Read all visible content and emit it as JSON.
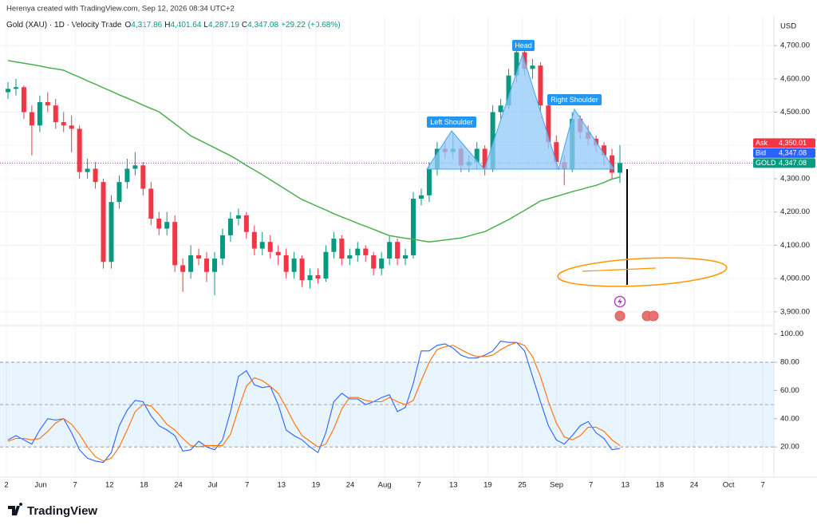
{
  "header": {
    "credit": "Herenya created with TradingView.com, Sep 12, 2026 08:34 UTC+2",
    "symbol": "Gold (XAU) · 1D · Velocity Trade",
    "ohlc": [
      {
        "key": "O",
        "value": "4,317.86"
      },
      {
        "key": "H",
        "value": "4,401.64"
      },
      {
        "key": "L",
        "value": "4,287.19"
      },
      {
        "key": "C",
        "value": "4,347.08"
      }
    ],
    "change": "+29.22 (+0.68%)",
    "currency": "USD"
  },
  "footer": {
    "brand": "TradingView"
  },
  "chart_data": [
    {
      "type": "candlestick",
      "up_color": "#089981",
      "down_color": "#f23645",
      "ylim": [
        3866,
        4789
      ],
      "yticks": [
        {
          "value": 3900,
          "label": "3,900.00"
        },
        {
          "value": 4000,
          "label": "4,000.00"
        },
        {
          "value": 4100,
          "label": "4,100.00"
        },
        {
          "value": 4200,
          "label": "4,200.00"
        },
        {
          "value": 4300,
          "label": "4,300.00"
        },
        {
          "value": 4400,
          "label": "4,400.00"
        },
        {
          "value": 4500,
          "label": "4,500.00"
        },
        {
          "value": 4600,
          "label": "4,600.00"
        },
        {
          "value": 4700,
          "label": "4,700.00"
        }
      ],
      "grid": true,
      "candles": [
        [
          4560,
          4590,
          4540,
          4570
        ],
        [
          4570,
          4600,
          4550,
          4575
        ],
        [
          4575,
          4580,
          4480,
          4500
        ],
        [
          4500,
          4520,
          4370,
          4460
        ],
        [
          4460,
          4550,
          4440,
          4530
        ],
        [
          4530,
          4560,
          4500,
          4520
        ],
        [
          4520,
          4540,
          4450,
          4470
        ],
        [
          4470,
          4500,
          4440,
          4460
        ],
        [
          4460,
          4490,
          4380,
          4450
        ],
        [
          4450,
          4460,
          4300,
          4320
        ],
        [
          4320,
          4360,
          4300,
          4330
        ],
        [
          4330,
          4350,
          4270,
          4290
        ],
        [
          4290,
          4300,
          4030,
          4050
        ],
        [
          4050,
          4250,
          4030,
          4230
        ],
        [
          4230,
          4310,
          4210,
          4290
        ],
        [
          4290,
          4360,
          4270,
          4330
        ],
        [
          4330,
          4380,
          4310,
          4340
        ],
        [
          4340,
          4350,
          4250,
          4270
        ],
        [
          4270,
          4290,
          4160,
          4180
        ],
        [
          4180,
          4200,
          4130,
          4150
        ],
        [
          4150,
          4200,
          4130,
          4170
        ],
        [
          4170,
          4190,
          4020,
          4040
        ],
        [
          4040,
          4060,
          3960,
          4020
        ],
        [
          4020,
          4100,
          4000,
          4070
        ],
        [
          4070,
          4090,
          4040,
          4060
        ],
        [
          4060,
          4080,
          3990,
          4020
        ],
        [
          4020,
          4080,
          3950,
          4060
        ],
        [
          4060,
          4150,
          4040,
          4130
        ],
        [
          4130,
          4200,
          4110,
          4180
        ],
        [
          4180,
          4210,
          4160,
          4190
        ],
        [
          4190,
          4200,
          4120,
          4140
        ],
        [
          4140,
          4160,
          4070,
          4090
        ],
        [
          4090,
          4140,
          4070,
          4110
        ],
        [
          4110,
          4130,
          4060,
          4080
        ],
        [
          4080,
          4100,
          4040,
          4070
        ],
        [
          4070,
          4090,
          4000,
          4020
        ],
        [
          4020,
          4080,
          4000,
          4060
        ],
        [
          4060,
          4070,
          3975,
          3995
        ],
        [
          3995,
          4030,
          3970,
          4010
        ],
        [
          4010,
          4030,
          3985,
          4000
        ],
        [
          4000,
          4100,
          3990,
          4080
        ],
        [
          4080,
          4140,
          4060,
          4120
        ],
        [
          4120,
          4130,
          4040,
          4060
        ],
        [
          4060,
          4090,
          4040,
          4070
        ],
        [
          4070,
          4110,
          4050,
          4090
        ],
        [
          4090,
          4100,
          4050,
          4070
        ],
        [
          4070,
          4080,
          4010,
          4030
        ],
        [
          4030,
          4080,
          4010,
          4060
        ],
        [
          4060,
          4130,
          4040,
          4110
        ],
        [
          4110,
          4120,
          4040,
          4060
        ],
        [
          4060,
          4090,
          4040,
          4070
        ],
        [
          4070,
          4260,
          4060,
          4240
        ],
        [
          4240,
          4270,
          4220,
          4250
        ],
        [
          4250,
          4350,
          4230,
          4330
        ],
        [
          4330,
          4410,
          4310,
          4390
        ],
        [
          4390,
          4410,
          4360,
          4380
        ],
        [
          4380,
          4440,
          4360,
          4390
        ],
        [
          4390,
          4400,
          4320,
          4340
        ],
        [
          4340,
          4370,
          4320,
          4350
        ],
        [
          4350,
          4410,
          4330,
          4390
        ],
        [
          4390,
          4400,
          4310,
          4330
        ],
        [
          4330,
          4520,
          4320,
          4500
        ],
        [
          4500,
          4540,
          4480,
          4520
        ],
        [
          4520,
          4630,
          4510,
          4610
        ],
        [
          4610,
          4700,
          4590,
          4680
        ],
        [
          4680,
          4690,
          4610,
          4630
        ],
        [
          4630,
          4660,
          4600,
          4640
        ],
        [
          4640,
          4650,
          4500,
          4520
        ],
        [
          4520,
          4530,
          4390,
          4410
        ],
        [
          4410,
          4430,
          4330,
          4350
        ],
        [
          4350,
          4370,
          4280,
          4330
        ],
        [
          4330,
          4500,
          4320,
          4480
        ],
        [
          4480,
          4490,
          4420,
          4440
        ],
        [
          4440,
          4460,
          4400,
          4420
        ],
        [
          4420,
          4430,
          4380,
          4400
        ],
        [
          4400,
          4410,
          4340,
          4370
        ],
        [
          4370,
          4390,
          4300,
          4318
        ],
        [
          4317.86,
          4401.64,
          4287.19,
          4347.08
        ]
      ],
      "ma": {
        "color": "#4caf50",
        "values": [
          4655,
          4651,
          4647,
          4643,
          4639,
          4634,
          4630,
          4626,
          4615,
          4605,
          4594,
          4584,
          4573,
          4563,
          4552,
          4542,
          4532,
          4521,
          4511,
          4501,
          4483,
          4465,
          4447,
          4429,
          4417,
          4405,
          4393,
          4381,
          4369,
          4355,
          4340,
          4326,
          4312,
          4297,
          4282,
          4267,
          4252,
          4237,
          4227,
          4216,
          4206,
          4195,
          4185,
          4176,
          4166,
          4157,
          4148,
          4138,
          4129,
          4125,
          4121,
          4118,
          4114,
          4110,
          4113,
          4116,
          4119,
          4122,
          4128,
          4135,
          4141,
          4153,
          4165,
          4177,
          4191,
          4205,
          4219,
          4233,
          4240,
          4247,
          4254,
          4261,
          4267,
          4274,
          4280,
          4289,
          4299,
          4305
        ]
      },
      "price_tags": [
        {
          "name": "Ask",
          "value": 4350.01,
          "label": "4,350.01",
          "color": "#f23645"
        },
        {
          "name": "Bid",
          "value": 4347.08,
          "label": "4,347.08",
          "color": "#2962ff"
        },
        {
          "name": "GOLD",
          "value": 4347.08,
          "label": "4,347.08",
          "color": "#089981"
        }
      ],
      "annotations": [
        "Head",
        "Left Shoulder",
        "Right Shoulder"
      ]
    },
    {
      "type": "line",
      "ylim": [
        0,
        106
      ],
      "yticks": [
        {
          "value": 20,
          "label": "20.00"
        },
        {
          "value": 40,
          "label": "40.00"
        },
        {
          "value": 60,
          "label": "60.00"
        },
        {
          "value": 80,
          "label": "80.00"
        },
        {
          "value": 100,
          "label": "100.00"
        }
      ],
      "band": [
        20,
        80
      ],
      "levels": [
        20,
        50,
        80
      ],
      "series": [
        {
          "color": "#2962ff",
          "values": [
            25,
            28,
            25,
            22,
            32,
            40,
            39,
            40,
            30,
            18,
            12,
            10,
            9,
            16,
            35,
            46,
            53,
            52,
            42,
            35,
            32,
            28,
            17,
            18,
            24,
            20,
            18,
            25,
            45,
            70,
            74,
            64,
            62,
            63,
            50,
            32,
            28,
            25,
            20,
            16,
            30,
            52,
            58,
            54,
            54,
            50,
            52,
            55,
            57,
            45,
            48,
            65,
            88,
            88,
            92,
            93,
            90,
            85,
            83,
            83,
            85,
            88,
            95,
            94,
            94,
            88,
            70,
            52,
            35,
            25,
            22,
            28,
            35,
            38,
            30,
            26,
            18,
            19
          ]
        },
        {
          "color": "#ff6d00",
          "values": [
            24,
            26,
            26,
            25,
            26,
            31,
            37,
            40,
            36,
            29,
            20,
            13,
            10,
            12,
            20,
            32,
            45,
            50,
            49,
            43,
            36,
            32,
            26,
            21,
            20,
            21,
            21,
            21,
            29,
            47,
            63,
            69,
            67,
            63,
            58,
            48,
            37,
            28,
            24,
            20,
            22,
            33,
            47,
            55,
            55,
            53,
            52,
            52,
            55,
            52,
            50,
            53,
            67,
            80,
            89,
            91,
            92,
            89,
            86,
            84,
            84,
            85,
            89,
            92,
            94,
            92,
            84,
            70,
            52,
            37,
            27,
            25,
            28,
            34,
            34,
            31,
            25,
            21
          ]
        }
      ],
      "xtick_labels": [
        "2",
        "Jun",
        "7",
        "12",
        "18",
        "24",
        "Jul",
        "7",
        "13",
        "19",
        "24",
        "Aug",
        "7",
        "13",
        "19",
        "25",
        "Sep",
        "7",
        "13",
        "18",
        "24",
        "Oct",
        "7"
      ]
    }
  ]
}
